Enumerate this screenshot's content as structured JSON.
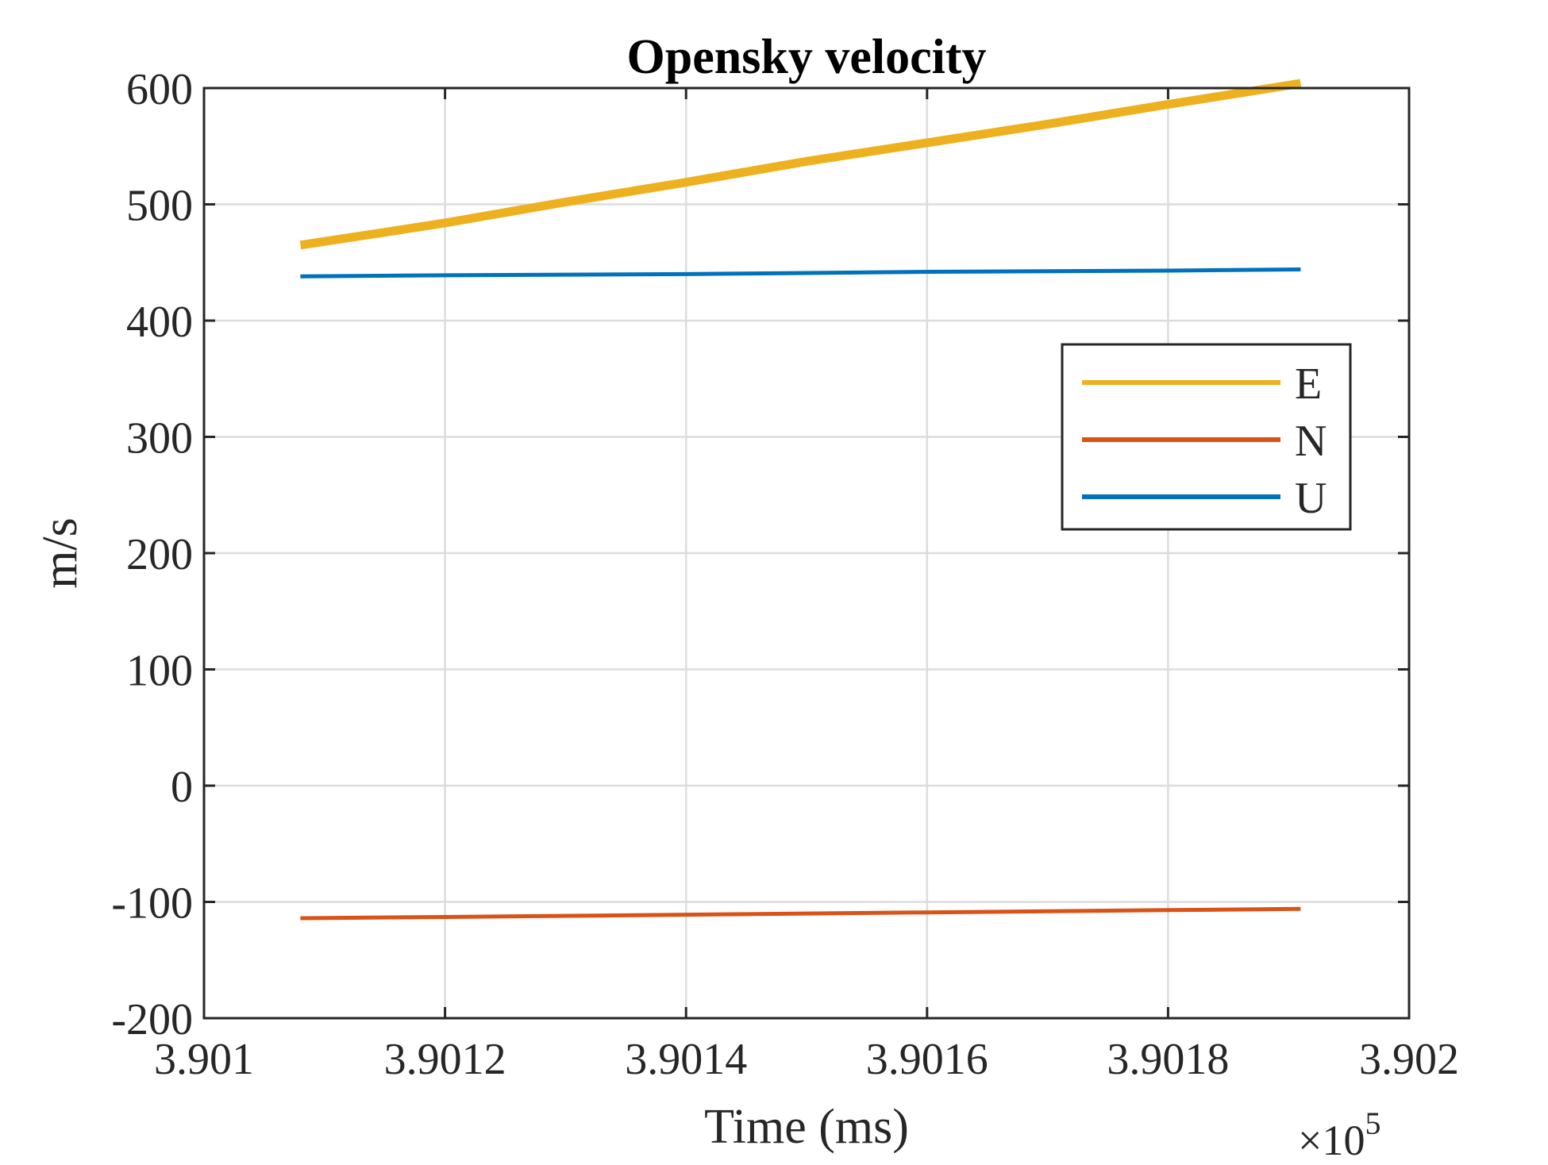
{
  "chart_data": {
    "type": "line",
    "title": "Opensky velocity",
    "xlabel": "Time (ms)",
    "ylabel": "m/s",
    "x_exponent_label": "×10",
    "x_exponent_power": "5",
    "xlim": [
      390100,
      390200
    ],
    "ylim": [
      -200,
      600
    ],
    "x_ticks": [
      390100,
      390120,
      390140,
      390160,
      390180,
      390200
    ],
    "x_tick_labels": [
      "3.901",
      "3.9012",
      "3.9014",
      "3.9016",
      "3.9018",
      "3.902"
    ],
    "y_ticks": [
      -200,
      -100,
      0,
      100,
      200,
      300,
      400,
      500,
      600
    ],
    "y_tick_labels": [
      "-200",
      "-100",
      "0",
      "100",
      "200",
      "300",
      "400",
      "500",
      "600"
    ],
    "grid": true,
    "legend_position": "right, upper-middle",
    "series": [
      {
        "name": "E",
        "color": "#EDB120",
        "x": [
          390108,
          390115,
          390120,
          390130,
          390140,
          390150,
          390160,
          390170,
          390180,
          390191
        ],
        "values": [
          465,
          476,
          484,
          502,
          519,
          537,
          553,
          569,
          586,
          604
        ]
      },
      {
        "name": "N",
        "color": "#D95319",
        "x": [
          390108,
          390120,
          390140,
          390160,
          390180,
          390191
        ],
        "values": [
          -114,
          -113,
          -111,
          -109,
          -107,
          -106
        ]
      },
      {
        "name": "U",
        "color": "#0072BD",
        "x": [
          390108,
          390120,
          390140,
          390160,
          390180,
          390191
        ],
        "values": [
          438,
          439,
          440,
          442,
          443,
          444
        ]
      }
    ]
  }
}
